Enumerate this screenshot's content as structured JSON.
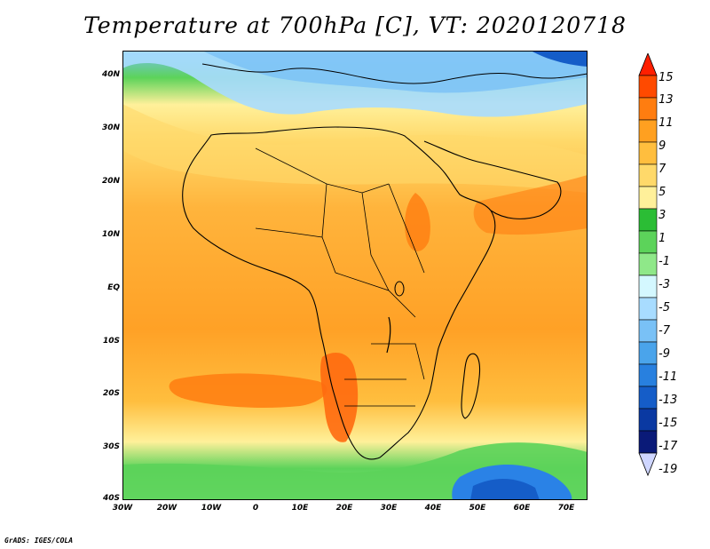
{
  "title": "Temperature at 700hPa [C], VT: 2020120718",
  "credit": "GrADS: IGES/COLA",
  "y_axis": {
    "labels": [
      "40N",
      "30N",
      "20N",
      "10N",
      "EQ",
      "10S",
      "20S",
      "30S",
      "40S"
    ]
  },
  "x_axis": {
    "labels": [
      "30W",
      "20W",
      "10W",
      "0",
      "10E",
      "20E",
      "30E",
      "40E",
      "50E",
      "60E",
      "70E"
    ]
  },
  "colorbar": {
    "labels": [
      "15",
      "13",
      "11",
      "9",
      "7",
      "5",
      "3",
      "1",
      "-1",
      "-3",
      "-5",
      "-7",
      "-9",
      "-11",
      "-13",
      "-15",
      "-17",
      "-19"
    ],
    "colors": [
      "#ff1f00",
      "#ff4a00",
      "#ff7d10",
      "#ffa020",
      "#ffbe3e",
      "#ffd96a",
      "#fff09a",
      "#2bbd35",
      "#5cd35a",
      "#8fe889",
      "#d4f8ff",
      "#a8dcff",
      "#79c1f6",
      "#4aa4eb",
      "#2880df",
      "#155dc8",
      "#0a39a2",
      "#0a1a78",
      "#cfd6ff"
    ]
  },
  "regions": {
    "sea_warm": "#ffa126",
    "land_warm": "#ffb43c",
    "hot": "#ff6a10",
    "cool_north": "#6cd463",
    "cold_north": "#3d9cf0",
    "cold_south": "#2a82e6"
  }
}
